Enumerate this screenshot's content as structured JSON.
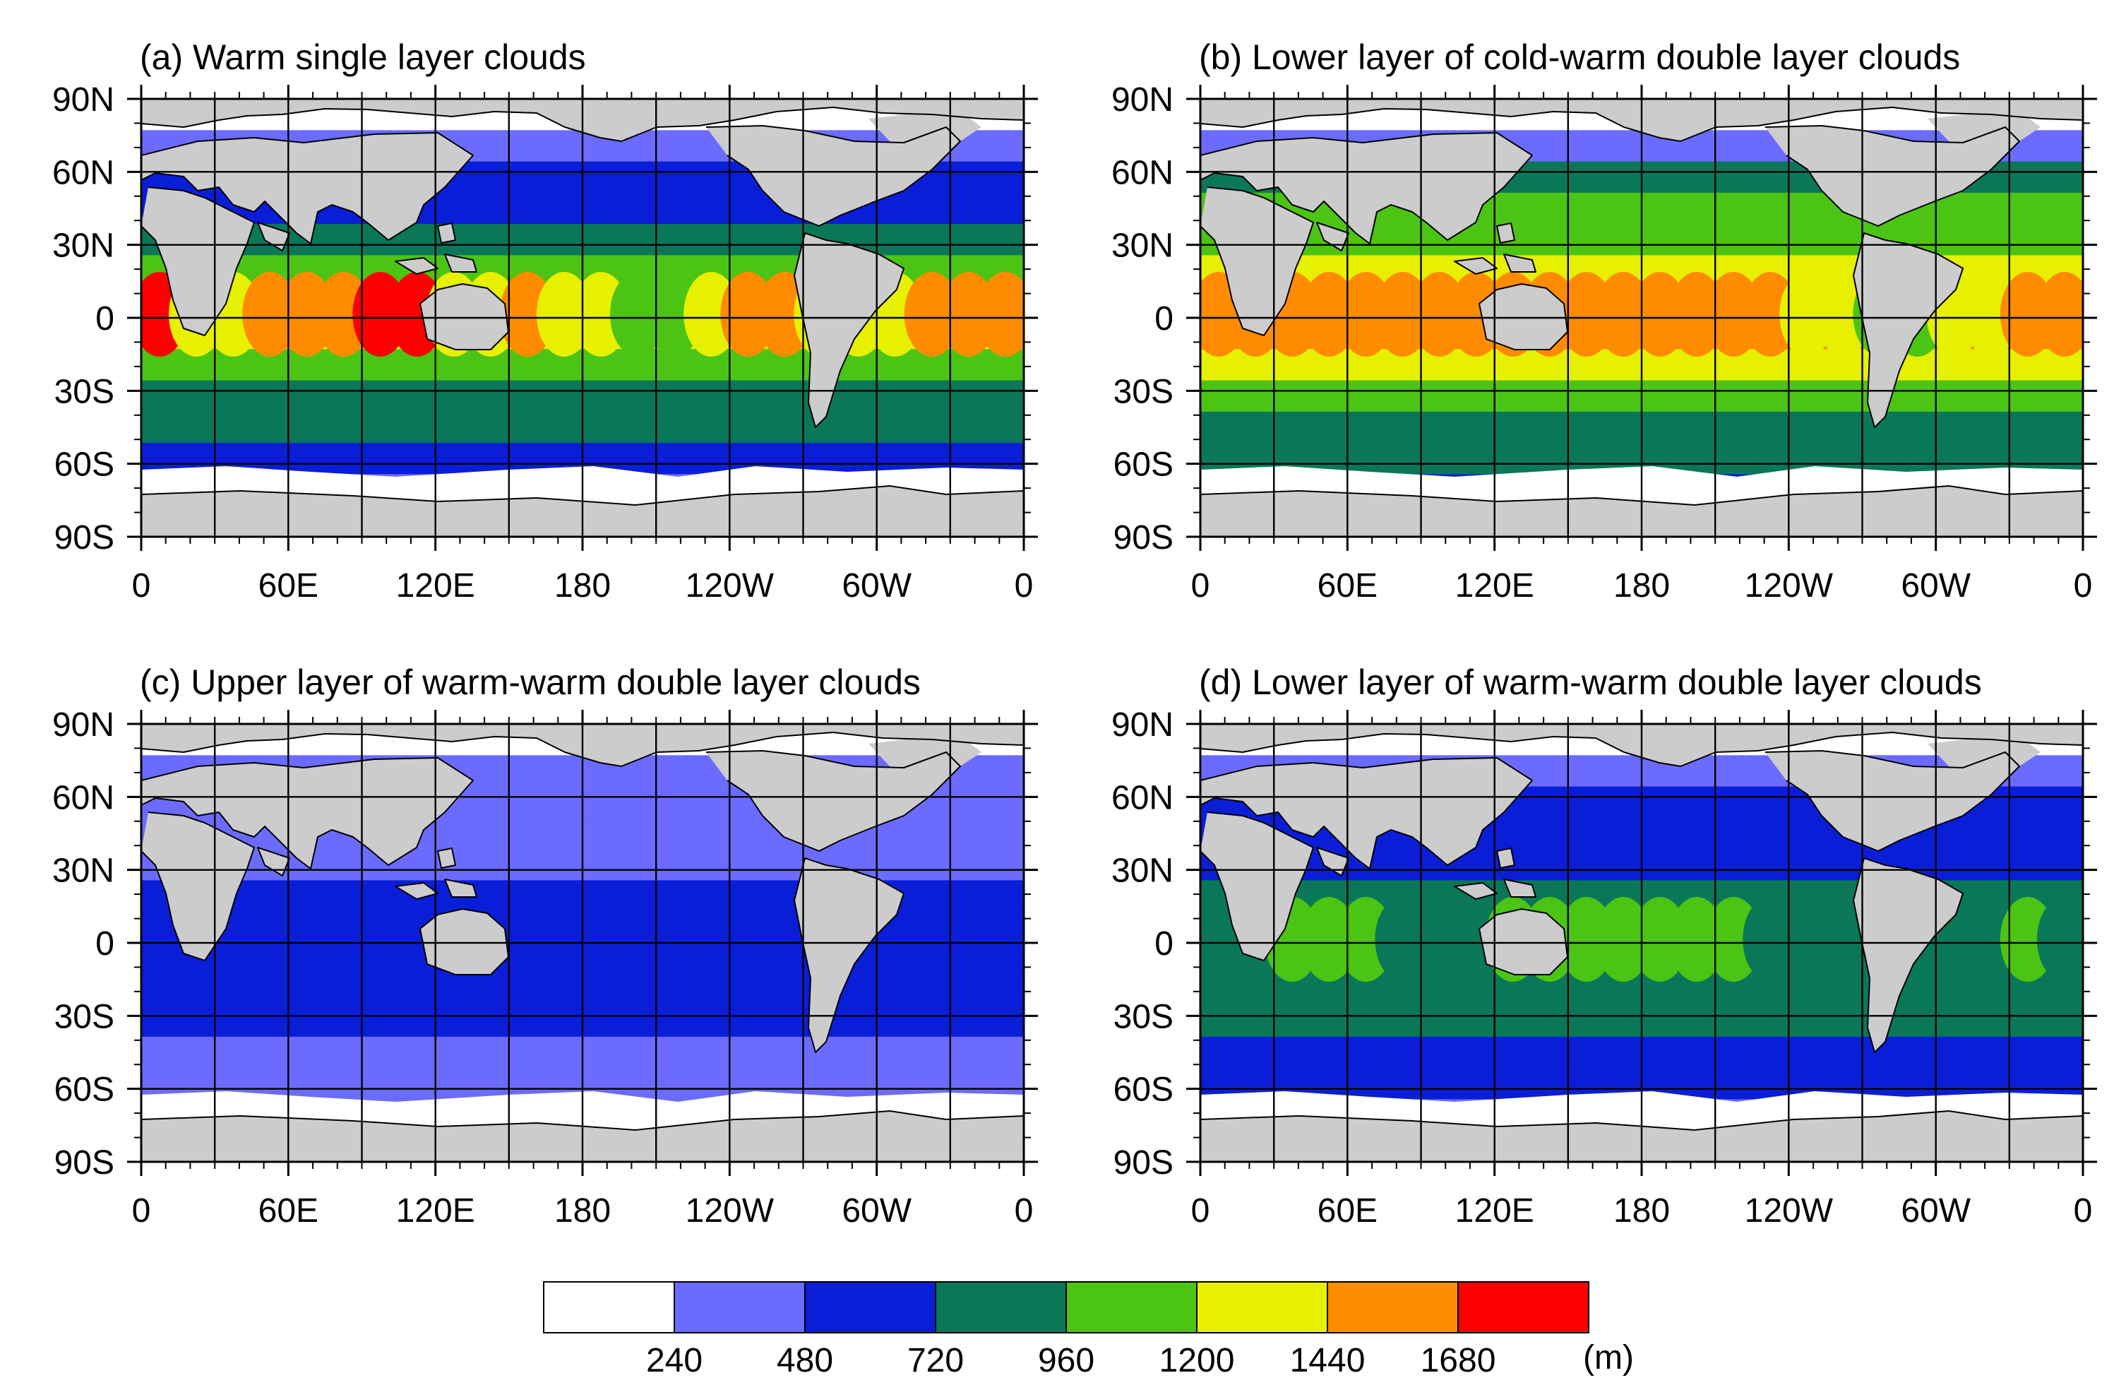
{
  "panels": [
    {
      "id": "a",
      "title": "(a) Warm single layer clouds",
      "eq_band": [
        7,
        5,
        5,
        6,
        6,
        6,
        7,
        7,
        5,
        5,
        6,
        5,
        5,
        4,
        4,
        5,
        6,
        6,
        5,
        5,
        5,
        6,
        6,
        6
      ],
      "profile": [
        0,
        1,
        2,
        2,
        3,
        4,
        5,
        5,
        4,
        3,
        3,
        2,
        1,
        0
      ]
    },
    {
      "id": "b",
      "title": "(b) Lower layer of cold-warm double layer clouds",
      "eq_band": [
        6,
        6,
        6,
        6,
        6,
        6,
        6,
        6,
        6,
        6,
        6,
        6,
        6,
        6,
        6,
        6,
        5,
        5,
        4,
        4,
        5,
        5,
        6,
        6
      ],
      "profile": [
        0,
        1,
        3,
        4,
        4,
        5,
        6,
        6,
        5,
        4,
        3,
        3,
        2,
        0
      ]
    },
    {
      "id": "c",
      "title": "(c) Upper layer of warm-warm double layer clouds",
      "eq_band": [
        2,
        2,
        2,
        2,
        2,
        2,
        2,
        2,
        2,
        2,
        2,
        2,
        2,
        2,
        2,
        2,
        2,
        2,
        2,
        2,
        2,
        2,
        2,
        2
      ],
      "profile": [
        0,
        1,
        1,
        1,
        1,
        2,
        2,
        2,
        2,
        2,
        1,
        1,
        1,
        0
      ]
    },
    {
      "id": "d",
      "title": "(d) Lower layer of warm-warm double layer clouds",
      "eq_band": [
        3,
        3,
        4,
        4,
        4,
        3,
        3,
        3,
        4,
        4,
        4,
        4,
        4,
        4,
        4,
        3,
        3,
        3,
        3,
        3,
        3,
        3,
        4,
        3
      ],
      "profile": [
        0,
        1,
        2,
        2,
        2,
        3,
        4,
        3,
        3,
        3,
        2,
        2,
        1,
        0
      ]
    }
  ],
  "lon_ticks": [
    "0",
    "60E",
    "120E",
    "180",
    "120W",
    "60W",
    "0"
  ],
  "lat_ticks": [
    "90N",
    "60N",
    "30N",
    "0",
    "30S",
    "60S",
    "90S"
  ],
  "colorbar": {
    "colors": [
      "#ffffff",
      "#6b6bff",
      "#0a1ed8",
      "#0a7858",
      "#4cc414",
      "#e6f000",
      "#ff8c00",
      "#ff0000"
    ],
    "labels": [
      "240",
      "480",
      "720",
      "960",
      "1200",
      "1440",
      "1680"
    ],
    "unit": "(m)"
  }
}
